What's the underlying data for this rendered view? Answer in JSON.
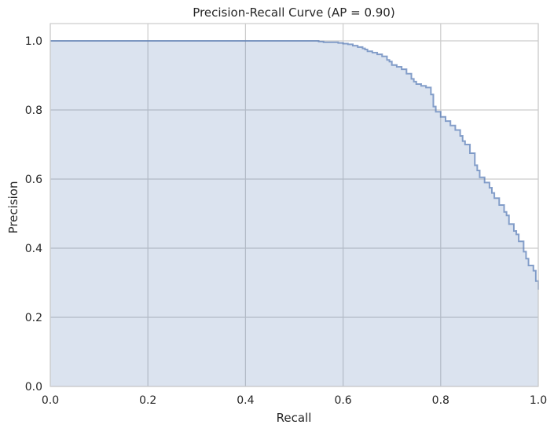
{
  "chart_data": {
    "type": "area",
    "title": "Precision-Recall Curve (AP = 0.90)",
    "xlabel": "Recall",
    "ylabel": "Precision",
    "xlim": [
      0,
      1
    ],
    "ylim": [
      0,
      1.05
    ],
    "grid": true,
    "xticks": [
      "0.0",
      "0.2",
      "0.4",
      "0.6",
      "0.8",
      "1.0"
    ],
    "yticks": [
      "0.0",
      "0.2",
      "0.4",
      "0.6",
      "0.8",
      "1.0"
    ],
    "color": "#4c72b0",
    "series": [
      {
        "step": "post",
        "x": [
          0.0,
          0.55,
          0.56,
          0.59,
          0.6,
          0.61,
          0.62,
          0.63,
          0.64,
          0.645,
          0.65,
          0.66,
          0.67,
          0.68,
          0.69,
          0.695,
          0.7,
          0.71,
          0.72,
          0.73,
          0.74,
          0.745,
          0.75,
          0.76,
          0.77,
          0.78,
          0.785,
          0.79,
          0.8,
          0.81,
          0.82,
          0.83,
          0.84,
          0.845,
          0.85,
          0.86,
          0.87,
          0.875,
          0.88,
          0.89,
          0.9,
          0.905,
          0.91,
          0.92,
          0.93,
          0.935,
          0.94,
          0.95,
          0.955,
          0.96,
          0.97,
          0.975,
          0.98,
          0.99,
          0.995,
          1.0
        ],
        "y": [
          1.0,
          0.998,
          0.996,
          0.994,
          0.992,
          0.99,
          0.986,
          0.982,
          0.978,
          0.975,
          0.97,
          0.966,
          0.961,
          0.955,
          0.945,
          0.94,
          0.93,
          0.925,
          0.918,
          0.905,
          0.89,
          0.882,
          0.875,
          0.87,
          0.865,
          0.845,
          0.81,
          0.795,
          0.78,
          0.768,
          0.755,
          0.742,
          0.725,
          0.71,
          0.7,
          0.675,
          0.64,
          0.625,
          0.605,
          0.59,
          0.575,
          0.56,
          0.545,
          0.525,
          0.505,
          0.495,
          0.47,
          0.45,
          0.44,
          0.42,
          0.39,
          0.37,
          0.35,
          0.335,
          0.305,
          0.28
        ]
      }
    ]
  }
}
